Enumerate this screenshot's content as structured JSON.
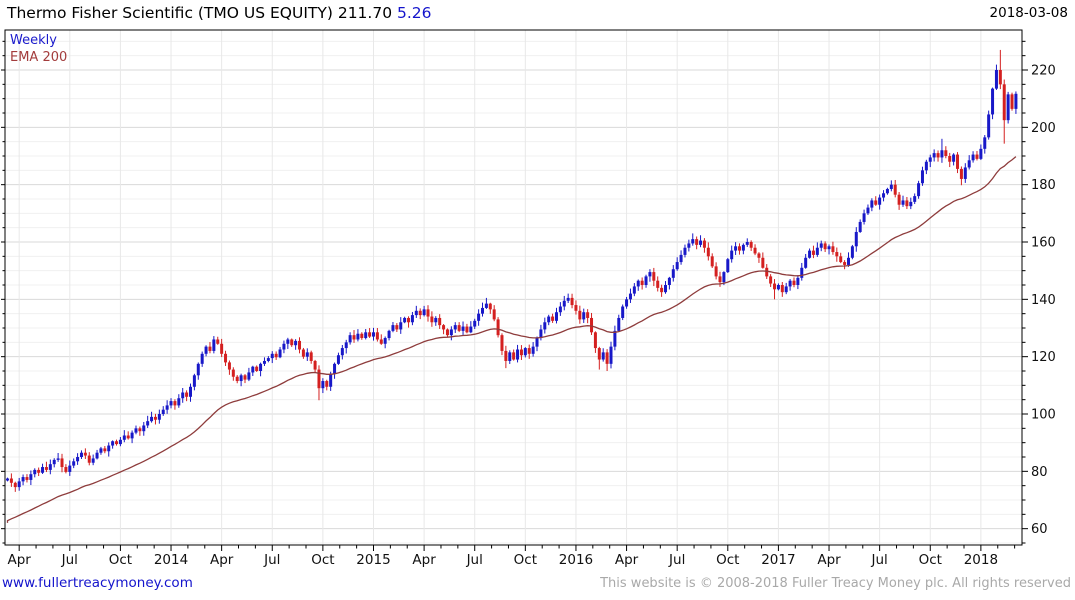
{
  "header": {
    "title": "Thermo Fisher Scientific (TMO US EQUITY) 211.70",
    "change": "5.26",
    "date": "2018-03-08"
  },
  "legend": {
    "timeframe": "Weekly",
    "overlay": "EMA 200"
  },
  "footer": {
    "website": "www.fullertreacymoney.com",
    "copyright": "This website is © 2008-2018 Fuller Treacy Money plc. All rights reserved"
  },
  "colors": {
    "up": "#1818c8",
    "down": "#d42020",
    "ema": "#8e3c3c",
    "grid_minor": "#f0f0f0",
    "grid_major": "#d9d9d9",
    "grid_vertical": "#e8e8e8",
    "axis": "#000000",
    "tick_label": "#111111",
    "change_text": "#1414cc",
    "link": "#1414cc",
    "copyright": "#a9a9a9"
  },
  "chart_data": {
    "type": "candlestick",
    "title": "Thermo Fisher Scientific (TMO US EQUITY)",
    "last_price": 211.7,
    "change": 5.26,
    "date": "2018-03-08",
    "timeframe": "Weekly",
    "overlay": "EMA 200",
    "scale": "price",
    "ylim": [
      54,
      234
    ],
    "y_ticks": [
      60,
      80,
      100,
      120,
      140,
      160,
      180,
      200,
      220
    ],
    "y_minor_step": 5,
    "x_ticks": [
      {
        "label": "Apr",
        "week": 3
      },
      {
        "label": "Jul",
        "week": 16
      },
      {
        "label": "Oct",
        "week": 29
      },
      {
        "label": "2014",
        "week": 42
      },
      {
        "label": "Apr",
        "week": 55
      },
      {
        "label": "Jul",
        "week": 68
      },
      {
        "label": "Oct",
        "week": 81
      },
      {
        "label": "2015",
        "week": 94
      },
      {
        "label": "Apr",
        "week": 107
      },
      {
        "label": "Jul",
        "week": 120
      },
      {
        "label": "Oct",
        "week": 133
      },
      {
        "label": "2016",
        "week": 146
      },
      {
        "label": "Apr",
        "week": 159
      },
      {
        "label": "Jul",
        "week": 172
      },
      {
        "label": "Oct",
        "week": 185
      },
      {
        "label": "2017",
        "week": 198
      },
      {
        "label": "Apr",
        "week": 211
      },
      {
        "label": "Jul",
        "week": 224
      },
      {
        "label": "Oct",
        "week": 237
      },
      {
        "label": "2018",
        "week": 250
      }
    ],
    "weekly_closes": [
      77.5,
      76.0,
      74.5,
      76.5,
      78.0,
      77.0,
      79.0,
      80.5,
      79.5,
      81.5,
      80.5,
      82.5,
      84.0,
      84.5,
      81.5,
      79.8,
      82.0,
      83.5,
      85.0,
      86.5,
      85.5,
      83.0,
      84.5,
      86.5,
      88.0,
      87.0,
      89.0,
      90.5,
      89.5,
      91.0,
      92.5,
      91.5,
      93.5,
      95.0,
      94.0,
      96.0,
      97.5,
      99.0,
      98.0,
      100.0,
      101.5,
      103.0,
      104.5,
      103.0,
      105.5,
      107.5,
      106.0,
      109.5,
      113.5,
      117.5,
      121.0,
      123.5,
      122.0,
      126.0,
      124.5,
      121.0,
      118.0,
      115.5,
      113.0,
      111.5,
      113.5,
      112.0,
      114.5,
      116.5,
      115.0,
      117.5,
      118.5,
      119.5,
      121.0,
      119.8,
      122.5,
      124.5,
      126.0,
      124.0,
      125.5,
      122.5,
      120.0,
      121.5,
      118.5,
      115.5,
      109.0,
      111.5,
      109.5,
      114.0,
      117.5,
      120.5,
      123.0,
      125.0,
      127.5,
      126.0,
      128.0,
      126.5,
      128.5,
      127.0,
      128.5,
      126.0,
      124.5,
      126.5,
      129.0,
      131.0,
      129.5,
      132.0,
      133.5,
      132.0,
      134.5,
      136.0,
      134.5,
      136.5,
      134.0,
      132.0,
      133.5,
      131.0,
      129.5,
      127.5,
      129.5,
      131.0,
      129.0,
      130.5,
      128.5,
      130.5,
      132.5,
      135.0,
      137.0,
      138.5,
      136.5,
      133.0,
      127.5,
      122.0,
      118.5,
      121.5,
      119.0,
      122.5,
      120.5,
      123.0,
      121.0,
      123.5,
      126.5,
      129.5,
      132.0,
      134.0,
      132.5,
      135.5,
      137.5,
      139.5,
      140.5,
      138.0,
      136.0,
      133.0,
      135.5,
      133.5,
      128.5,
      123.0,
      119.0,
      121.5,
      117.5,
      123.5,
      129.0,
      133.5,
      137.5,
      140.0,
      142.0,
      144.5,
      146.5,
      145.0,
      148.0,
      149.5,
      146.5,
      144.0,
      142.5,
      145.0,
      147.5,
      150.5,
      153.0,
      155.5,
      158.0,
      159.5,
      161.0,
      159.0,
      160.5,
      158.0,
      155.0,
      151.5,
      148.0,
      146.0,
      149.5,
      154.0,
      157.0,
      158.5,
      157.0,
      159.0,
      160.0,
      158.0,
      156.0,
      154.5,
      151.0,
      148.0,
      145.5,
      143.5,
      145.0,
      142.5,
      144.5,
      146.5,
      145.0,
      147.5,
      151.0,
      154.5,
      157.0,
      155.5,
      158.0,
      159.5,
      157.5,
      158.5,
      156.5,
      155.0,
      153.0,
      152.0,
      154.5,
      158.5,
      163.5,
      167.0,
      170.0,
      172.0,
      174.5,
      173.0,
      175.5,
      177.0,
      178.5,
      180.0,
      176.5,
      173.0,
      174.5,
      172.5,
      174.0,
      176.0,
      180.5,
      185.0,
      188.0,
      189.5,
      191.0,
      189.5,
      192.0,
      190.0,
      188.0,
      190.5,
      185.5,
      182.0,
      186.0,
      188.5,
      190.5,
      189.0,
      192.5,
      196.5,
      204.5,
      213.5,
      220.0,
      215.0,
      202.5,
      211.5,
      206.44,
      211.7
    ],
    "first_open": 76.8,
    "wick_overrides": {
      "80": {
        "l": 104.8
      },
      "123": {
        "h": 140.5
      },
      "128": {
        "l": 116.0
      },
      "144": {
        "h": 142.0
      },
      "152": {
        "l": 115.5
      },
      "154": {
        "l": 115.0
      },
      "176": {
        "h": 163.0
      },
      "197": {
        "l": 140.0
      },
      "215": {
        "l": 150.5
      },
      "227": {
        "h": 181.5
      },
      "240": {
        "h": 196.0
      },
      "245": {
        "l": 179.8
      },
      "255": {
        "h": 227.0
      },
      "256": {
        "l": 194.3
      }
    },
    "ema_seed": 62.0,
    "ema_alpha": 0.05,
    "legend_position": "top-left",
    "grid": true
  }
}
